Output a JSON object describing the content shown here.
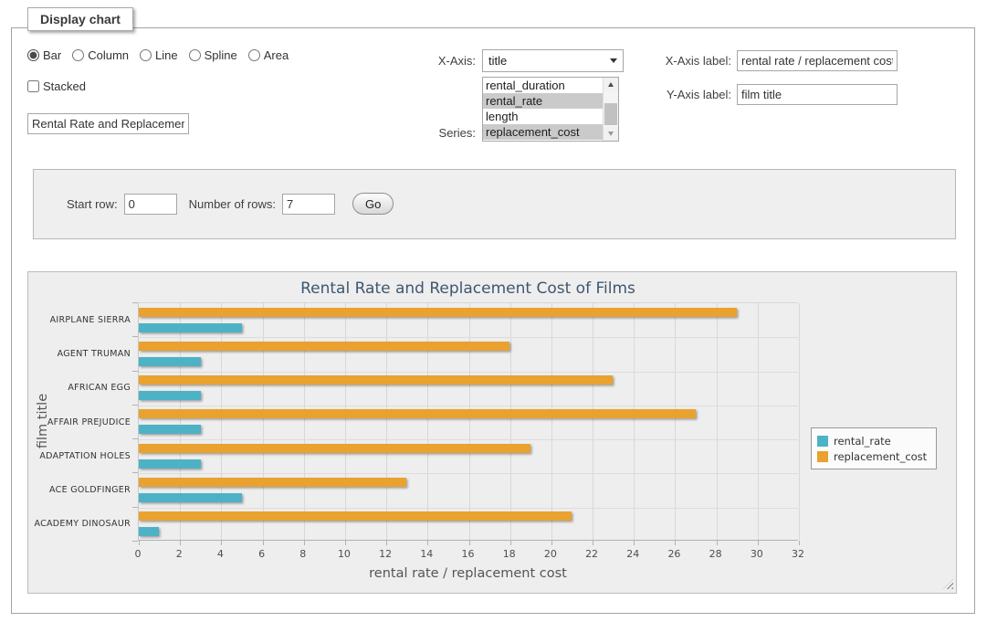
{
  "fieldset": {
    "legend_label": "Display chart"
  },
  "controls": {
    "chart_types": [
      "Bar",
      "Column",
      "Line",
      "Spline",
      "Area"
    ],
    "chart_type_selected": "Bar",
    "stacked_label": "Stacked",
    "stacked_checked": false,
    "title_value": "Rental Rate and Replacement Cost of Films",
    "x_axis": {
      "label": "X-Axis:",
      "selected": "title"
    },
    "series": {
      "label": "Series:",
      "options": [
        {
          "label": "rental_duration",
          "selected": false
        },
        {
          "label": "rental_rate",
          "selected": true
        },
        {
          "label": "length",
          "selected": false
        },
        {
          "label": "replacement_cost",
          "selected": true
        }
      ]
    },
    "x_axis_label": {
      "label": "X-Axis label:",
      "value": "rental rate / replacement cost"
    },
    "y_axis_label": {
      "label": "Y-Axis label:",
      "value": "film title"
    }
  },
  "rows_panel": {
    "start_row_label": "Start row:",
    "start_row_value": "0",
    "num_rows_label": "Number of rows:",
    "num_rows_value": "7",
    "go_label": "Go"
  },
  "chart_data": {
    "type": "bar",
    "title": "Rental Rate and Replacement Cost of Films",
    "categories": [
      "AIRPLANE SIERRA",
      "AGENT TRUMAN",
      "AFRICAN EGG",
      "AFFAIR PREJUDICE",
      "ADAPTATION HOLES",
      "ACE GOLDFINGER",
      "ACADEMY DINOSAUR"
    ],
    "series": [
      {
        "name": "rental_rate",
        "color": "#4eb2c6",
        "band_slot": 1,
        "values": [
          4.99,
          2.99,
          2.99,
          2.99,
          2.99,
          4.99,
          0.99
        ]
      },
      {
        "name": "replacement_cost",
        "color": "#e9a22f",
        "band_slot": 0,
        "values": [
          28.99,
          17.99,
          22.99,
          26.99,
          18.99,
          12.99,
          20.99
        ]
      }
    ],
    "xlabel": "rental rate / replacement cost",
    "ylabel": "film title",
    "xlim": [
      0,
      32
    ],
    "xtick_step": 2,
    "grid": true,
    "legend_position": "right"
  }
}
